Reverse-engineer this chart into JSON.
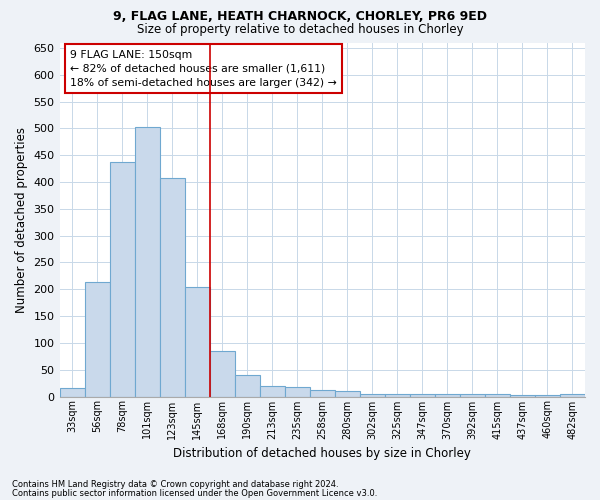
{
  "title_line1": "9, FLAG LANE, HEATH CHARNOCK, CHORLEY, PR6 9ED",
  "title_line2": "Size of property relative to detached houses in Chorley",
  "xlabel": "Distribution of detached houses by size in Chorley",
  "ylabel": "Number of detached properties",
  "categories": [
    "33sqm",
    "56sqm",
    "78sqm",
    "101sqm",
    "123sqm",
    "145sqm",
    "168sqm",
    "190sqm",
    "213sqm",
    "235sqm",
    "258sqm",
    "280sqm",
    "302sqm",
    "325sqm",
    "347sqm",
    "370sqm",
    "392sqm",
    "415sqm",
    "437sqm",
    "460sqm",
    "482sqm"
  ],
  "values": [
    15,
    213,
    438,
    503,
    408,
    205,
    85,
    40,
    20,
    18,
    13,
    10,
    5,
    5,
    5,
    5,
    5,
    5,
    3,
    3,
    5
  ],
  "bar_color": "#c9d9eb",
  "bar_edge_color": "#6fa8d0",
  "highlight_color": "#cc0000",
  "highlight_line_xindex": 5,
  "annotation_text": "9 FLAG LANE: 150sqm\n← 82% of detached houses are smaller (1,611)\n18% of semi-detached houses are larger (342) →",
  "annotation_box_color": "#ffffff",
  "annotation_box_edge": "#cc0000",
  "ylim": [
    0,
    660
  ],
  "yticks": [
    0,
    50,
    100,
    150,
    200,
    250,
    300,
    350,
    400,
    450,
    500,
    550,
    600,
    650
  ],
  "footer_line1": "Contains HM Land Registry data © Crown copyright and database right 2024.",
  "footer_line2": "Contains public sector information licensed under the Open Government Licence v3.0.",
  "bg_color": "#eef2f7",
  "plot_bg_color": "#ffffff",
  "grid_color": "#c8d8e8"
}
